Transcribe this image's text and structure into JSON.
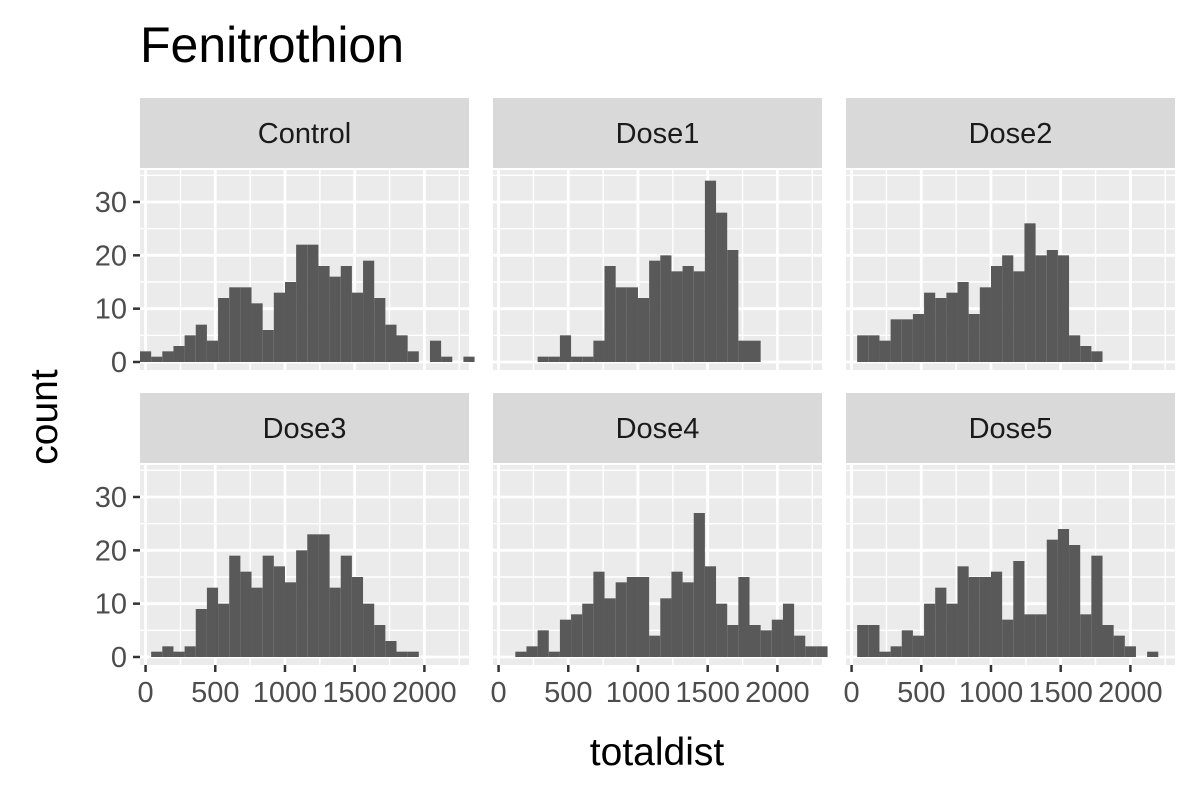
{
  "chart_data": {
    "type": "bar",
    "subtype": "faceted-histogram",
    "title": "Fenitrothion",
    "xlabel": "totaldist",
    "ylabel": "count",
    "xlim": [
      -40,
      2320
    ],
    "ylim": [
      -1.5,
      36
    ],
    "x_ticks": [
      0,
      500,
      1000,
      1500,
      2000
    ],
    "x_tick_labels": [
      "0",
      "500",
      "1000",
      "1500",
      "2000"
    ],
    "y_ticks": [
      0,
      10,
      20,
      30
    ],
    "y_tick_labels": [
      "0",
      "10",
      "20",
      "30"
    ],
    "grid": true,
    "layout": {
      "rows": 2,
      "cols": 3
    },
    "bin_start": -40,
    "bin_width": 80,
    "facets": [
      {
        "name": "Control",
        "values": [
          2,
          1,
          2,
          3,
          5,
          7,
          4,
          12,
          14,
          14,
          11,
          6,
          13,
          15,
          22,
          22,
          18,
          16,
          18,
          13,
          19,
          12,
          7,
          5,
          2,
          0,
          4,
          1,
          0,
          1
        ]
      },
      {
        "name": "Dose1",
        "values": [
          0,
          0,
          0,
          0,
          1,
          1,
          5,
          1,
          1,
          4,
          18,
          14,
          14,
          12,
          19,
          20,
          17,
          18,
          17,
          34,
          28,
          21,
          4,
          4,
          0,
          0,
          0,
          0,
          0,
          0
        ]
      },
      {
        "name": "Dose2",
        "values": [
          0,
          5,
          5,
          4,
          8,
          8,
          9,
          13,
          12,
          13,
          15,
          9,
          14,
          18,
          20,
          17,
          26,
          20,
          21,
          20,
          5,
          3,
          2,
          0,
          0,
          0,
          0,
          0,
          0,
          0
        ]
      },
      {
        "name": "Dose3",
        "values": [
          0,
          1,
          2,
          1,
          2,
          9,
          13,
          10,
          19,
          16,
          13,
          19,
          17,
          14,
          20,
          23,
          23,
          13,
          19,
          15,
          10,
          6,
          3,
          1,
          1,
          0,
          0,
          0,
          0,
          0
        ]
      },
      {
        "name": "Dose4",
        "values": [
          0,
          0,
          1,
          2,
          5,
          1,
          7,
          8,
          10,
          16,
          11,
          14,
          15,
          15,
          4,
          11,
          16,
          14,
          27,
          17,
          10,
          6,
          15,
          6,
          5,
          7,
          10,
          4,
          2,
          2
        ]
      },
      {
        "name": "Dose5",
        "values": [
          0,
          6,
          6,
          1,
          2,
          5,
          4,
          10,
          13,
          10,
          17,
          15,
          15,
          16,
          7,
          18,
          8,
          8,
          22,
          24,
          21,
          8,
          19,
          6,
          4,
          2,
          0,
          1,
          0,
          0
        ]
      }
    ],
    "colors": {
      "bar": "#595959",
      "panel_background": "#ebebeb",
      "strip_background": "#d9d9d9",
      "grid": "#ffffff",
      "tick": "#333333"
    }
  }
}
